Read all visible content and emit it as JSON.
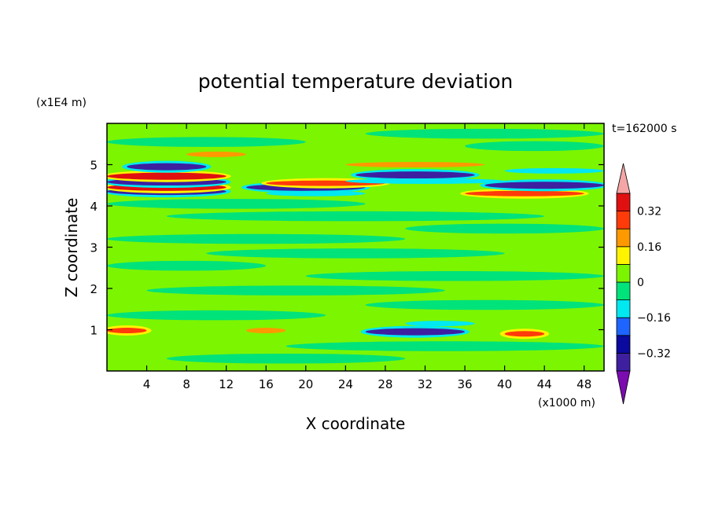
{
  "chart_data": {
    "type": "heatmap",
    "title": "potential temperature deviation",
    "xlabel": "X coordinate",
    "ylabel": "Z coordinate",
    "x_unit": "(x1000 m)",
    "y_unit": "(x1E4 m)",
    "time_label": "t=162000 s",
    "xlim": [
      0,
      50
    ],
    "ylim": [
      0,
      6
    ],
    "x_ticks": [
      4,
      8,
      12,
      16,
      20,
      24,
      28,
      32,
      36,
      40,
      44,
      48
    ],
    "y_ticks": [
      1,
      2,
      3,
      4,
      5
    ],
    "colorbar": {
      "levels": [
        -0.4,
        -0.32,
        -0.24,
        -0.16,
        -0.08,
        0,
        0.08,
        0.16,
        0.24,
        0.32,
        0.4
      ],
      "tick_labels": [
        "0.32",
        "0.16",
        "0",
        "−0.16",
        "−0.32"
      ],
      "tick_values": [
        0.32,
        0.16,
        0,
        -0.16,
        -0.32
      ],
      "colors": [
        "#7a0cb0",
        "#3d1fa0",
        "#0a0a9e",
        "#1e64ff",
        "#00e8f0",
        "#00e27a",
        "#7cf500",
        "#fff300",
        "#ff9900",
        "#ff3b0a",
        "#e01010",
        "#f4a6a6"
      ]
    },
    "bands": [
      {
        "z": 4.35,
        "x_start": 0,
        "x_end": 12,
        "value": -0.4
      },
      {
        "z": 4.45,
        "x_start": 0,
        "x_end": 12,
        "value": 0.35
      },
      {
        "z": 4.58,
        "x_start": 0,
        "x_end": 12,
        "value": -0.4
      },
      {
        "z": 4.72,
        "x_start": 0,
        "x_end": 12,
        "value": 0.35
      },
      {
        "z": 4.95,
        "x_start": 2,
        "x_end": 10,
        "value": -0.35
      },
      {
        "z": 5.25,
        "x_start": 8,
        "x_end": 14,
        "value": 0.16
      },
      {
        "z": 4.45,
        "x_start": 14,
        "x_end": 26,
        "value": -0.4
      },
      {
        "z": 4.55,
        "x_start": 16,
        "x_end": 28,
        "value": 0.3
      },
      {
        "z": 4.3,
        "x_start": 16,
        "x_end": 26,
        "value": -0.16
      },
      {
        "z": 4.75,
        "x_start": 25,
        "x_end": 37,
        "value": -0.4
      },
      {
        "z": 5.0,
        "x_start": 24,
        "x_end": 38,
        "value": 0.16
      },
      {
        "z": 4.6,
        "x_start": 24,
        "x_end": 40,
        "value": -0.16
      },
      {
        "z": 4.3,
        "x_start": 36,
        "x_end": 48,
        "value": 0.3
      },
      {
        "z": 4.5,
        "x_start": 38,
        "x_end": 50,
        "value": -0.35
      },
      {
        "z": 4.85,
        "x_start": 40,
        "x_end": 50,
        "value": -0.16
      },
      {
        "z": 0.98,
        "x_start": 0,
        "x_end": 4,
        "value": 0.3
      },
      {
        "z": 0.98,
        "x_start": 14,
        "x_end": 18,
        "value": 0.16
      },
      {
        "z": 0.95,
        "x_start": 26,
        "x_end": 36,
        "value": -0.35
      },
      {
        "z": 0.9,
        "x_start": 40,
        "x_end": 44,
        "value": 0.25
      },
      {
        "z": 1.15,
        "x_start": 30,
        "x_end": 37,
        "value": -0.16
      }
    ]
  }
}
